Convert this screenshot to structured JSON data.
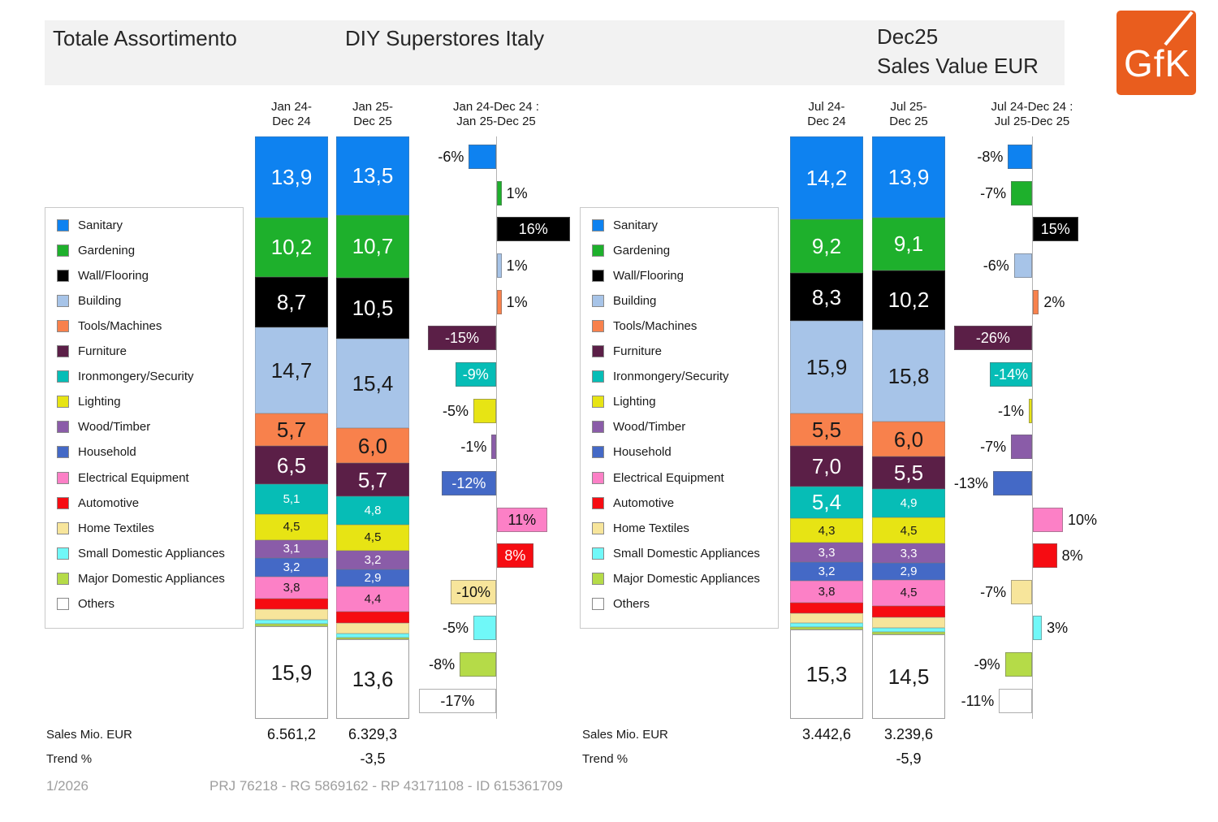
{
  "header": {
    "title_left": "Totale Assortimento",
    "title_mid": "DIY Superstores Italy",
    "period": "Dec25",
    "metric": "Sales Value EUR",
    "logo_text": "GfK",
    "logo_color": "#e95d1e"
  },
  "chart_data": {
    "type": "bar",
    "subtype": "stacked-100pct-with-change-bars",
    "value_unit": "percent share of Sales Value EUR",
    "categories": [
      {
        "label": "Sanitary",
        "color": "#0e82f0",
        "text": "#ffffff"
      },
      {
        "label": "Gardening",
        "color": "#1eb02c",
        "text": "#ffffff"
      },
      {
        "label": "Wall/Flooring",
        "color": "#000000",
        "text": "#ffffff"
      },
      {
        "label": "Building",
        "color": "#a7c4e8",
        "text": "#1a1a1a"
      },
      {
        "label": "Tools/Machines",
        "color": "#f8814c",
        "text": "#1a1a1a"
      },
      {
        "label": "Furniture",
        "color": "#5b1f47",
        "text": "#ffffff"
      },
      {
        "label": "Ironmongery/Security",
        "color": "#06bdb6",
        "text": "#ffffff"
      },
      {
        "label": "Lighting",
        "color": "#e7e414",
        "text": "#1a1a1a"
      },
      {
        "label": "Wood/Timber",
        "color": "#8a5ca8",
        "text": "#ffffff"
      },
      {
        "label": "Household",
        "color": "#4469c6",
        "text": "#ffffff"
      },
      {
        "label": "Electrical Equipment",
        "color": "#fc80c6",
        "text": "#1a1a1a"
      },
      {
        "label": "Automotive",
        "color": "#f60c12",
        "text": "#ffffff"
      },
      {
        "label": "Home Textiles",
        "color": "#f7e59b",
        "text": "#1a1a1a"
      },
      {
        "label": "Small Domestic Appliances",
        "color": "#70f8f8",
        "text": "#1a1a1a"
      },
      {
        "label": "Major Domestic Appliances",
        "color": "#b5db48",
        "text": "#1a1a1a"
      },
      {
        "label": "Others",
        "color": "#ffffff",
        "text": "#1a1a1a"
      }
    ],
    "panels": [
      {
        "id": "jan",
        "col_headers": [
          [
            "Jan 24-",
            "Dec 24"
          ],
          [
            "Jan 25-",
            "Dec 25"
          ]
        ],
        "change_header": [
          "Jan 24-Dec 24 :",
          "Jan 25-Dec 25"
        ],
        "series": [
          {
            "name": "Jan 24-Dec 24",
            "values": [
              13.9,
              10.2,
              8.7,
              14.7,
              5.7,
              6.5,
              5.1,
              4.5,
              3.1,
              3.2,
              3.8,
              1.8,
              1.8,
              0.7,
              0.4,
              15.9
            ],
            "labels": [
              "13,9",
              "10,2",
              "8,7",
              "14,7",
              "5,7",
              "6,5",
              "5,1",
              "4,5",
              "3,1",
              "3,2",
              "3,8",
              "",
              "",
              "",
              "",
              "15,9"
            ]
          },
          {
            "name": "Jan 25-Dec 25",
            "values": [
              13.5,
              10.7,
              10.5,
              15.4,
              6.0,
              5.7,
              4.8,
              4.5,
              3.2,
              2.9,
              4.4,
              1.9,
              1.8,
              0.7,
              0.4,
              13.6
            ],
            "labels": [
              "13,5",
              "10,7",
              "10,5",
              "15,4",
              "6,0",
              "5,7",
              "4,8",
              "4,5",
              "3,2",
              "2,9",
              "4,4",
              "",
              "",
              "",
              "",
              "13,6"
            ]
          }
        ],
        "change_pct": {
          "values": [
            -6,
            1,
            16,
            1,
            1,
            -15,
            -9,
            -5,
            -1,
            -12,
            11,
            8,
            -10,
            -5,
            -8,
            -17
          ],
          "labels": [
            "-6%",
            "1%",
            "16%",
            "1%",
            "1%",
            "-15%",
            "-9%",
            "-5%",
            "-1%",
            "-12%",
            "11%",
            "8%",
            "-10%",
            "-5%",
            "-8%",
            "-17%"
          ],
          "inside": [
            false,
            false,
            true,
            false,
            false,
            true,
            true,
            false,
            false,
            true,
            true,
            true,
            true,
            false,
            false,
            true
          ],
          "text_colors": [
            "#111",
            "#111",
            "#fff",
            "#111",
            "#111",
            "#fff",
            "#fff",
            "#111",
            "#111",
            "#fff",
            "#111",
            "#fff",
            "#111",
            "#111",
            "#111",
            "#111"
          ]
        },
        "sales_label": "Sales Mio. EUR",
        "sales_values": [
          "6.561,2",
          "6.329,3"
        ],
        "trend_label": "Trend %",
        "trend_value": "-3,5"
      },
      {
        "id": "jul",
        "col_headers": [
          [
            "Jul 24-",
            "Dec 24"
          ],
          [
            "Jul 25-",
            "Dec 25"
          ]
        ],
        "change_header": [
          "Jul 24-Dec 24 :",
          "Jul 25-Dec 25"
        ],
        "series": [
          {
            "name": "Jul 24-Dec 24",
            "values": [
              14.2,
              9.2,
              8.3,
              15.9,
              5.5,
              7.0,
              5.4,
              4.3,
              3.3,
              3.2,
              3.8,
              1.8,
              1.7,
              0.7,
              0.4,
              15.3
            ],
            "labels": [
              "14,2",
              "9,2",
              "8,3",
              "15,9",
              "5,5",
              "7,0",
              "5,4",
              "4,3",
              "3,3",
              "3,2",
              "3,8",
              "",
              "",
              "",
              "",
              "15,3"
            ]
          },
          {
            "name": "Jul 25-Dec 25",
            "values": [
              13.9,
              9.1,
              10.2,
              15.8,
              6.0,
              5.5,
              4.9,
              4.5,
              3.3,
              2.9,
              4.5,
              1.9,
              1.9,
              0.7,
              0.4,
              14.5
            ],
            "labels": [
              "13,9",
              "9,1",
              "10,2",
              "15,8",
              "6,0",
              "5,5",
              "4,9",
              "4,5",
              "3,3",
              "2,9",
              "4,5",
              "",
              "",
              "",
              "",
              "14,5"
            ]
          }
        ],
        "change_pct": {
          "values": [
            -8,
            -7,
            15,
            -6,
            2,
            -26,
            -14,
            -1,
            -7,
            -13,
            10,
            8,
            -7,
            3,
            -9,
            -11
          ],
          "labels": [
            "-8%",
            "-7%",
            "15%",
            "-6%",
            "2%",
            "-26%",
            "-14%",
            "-1%",
            "-7%",
            "-13%",
            "10%",
            "8%",
            "-7%",
            "3%",
            "-9%",
            "-11%"
          ],
          "inside": [
            false,
            false,
            true,
            false,
            false,
            true,
            true,
            false,
            false,
            false,
            false,
            false,
            false,
            false,
            false,
            false
          ],
          "text_colors": [
            "#111",
            "#111",
            "#fff",
            "#111",
            "#111",
            "#fff",
            "#fff",
            "#111",
            "#111",
            "#111",
            "#111",
            "#111",
            "#111",
            "#111",
            "#111",
            "#111"
          ]
        },
        "sales_label": "Sales Mio. EUR",
        "sales_values": [
          "3.442,6",
          "3.239,6"
        ],
        "trend_label": "Trend %",
        "trend_value": "-5,9"
      }
    ]
  },
  "footer": {
    "page": "1/2026",
    "ref": "PRJ 76218 - RG 5869162 - RP 43171108 - ID 615361709"
  }
}
